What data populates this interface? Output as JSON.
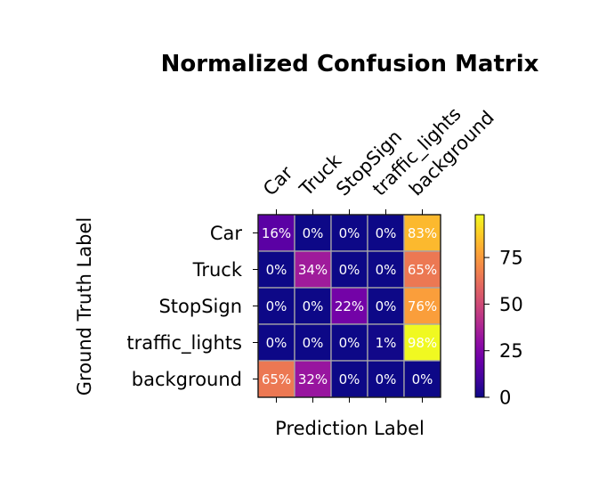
{
  "chart_data": {
    "type": "heatmap",
    "title": "Normalized Confusion Matrix",
    "xlabel": "Prediction Label",
    "ylabel": "Ground Truth Label",
    "x_categories": [
      "Car",
      "Truck",
      "StopSign",
      "traffic_lights",
      "background"
    ],
    "y_categories": [
      "Car",
      "Truck",
      "StopSign",
      "traffic_lights",
      "background"
    ],
    "values": [
      [
        16,
        0,
        0,
        0,
        83
      ],
      [
        0,
        34,
        0,
        0,
        65
      ],
      [
        0,
        0,
        22,
        0,
        76
      ],
      [
        0,
        0,
        0,
        1,
        98
      ],
      [
        65,
        32,
        0,
        0,
        0
      ]
    ],
    "cell_labels": [
      [
        "16%",
        "0%",
        "0%",
        "0%",
        "83%"
      ],
      [
        "0%",
        "34%",
        "0%",
        "0%",
        "65%"
      ],
      [
        "0%",
        "0%",
        "22%",
        "0%",
        "76%"
      ],
      [
        "0%",
        "0%",
        "0%",
        "1%",
        "98%"
      ],
      [
        "65%",
        "32%",
        "0%",
        "0%",
        "0%"
      ]
    ],
    "colormap": "plasma",
    "colorbar": {
      "range": [
        0,
        98
      ],
      "ticks": [
        "0",
        "25",
        "50",
        "75"
      ]
    },
    "grid": false
  }
}
